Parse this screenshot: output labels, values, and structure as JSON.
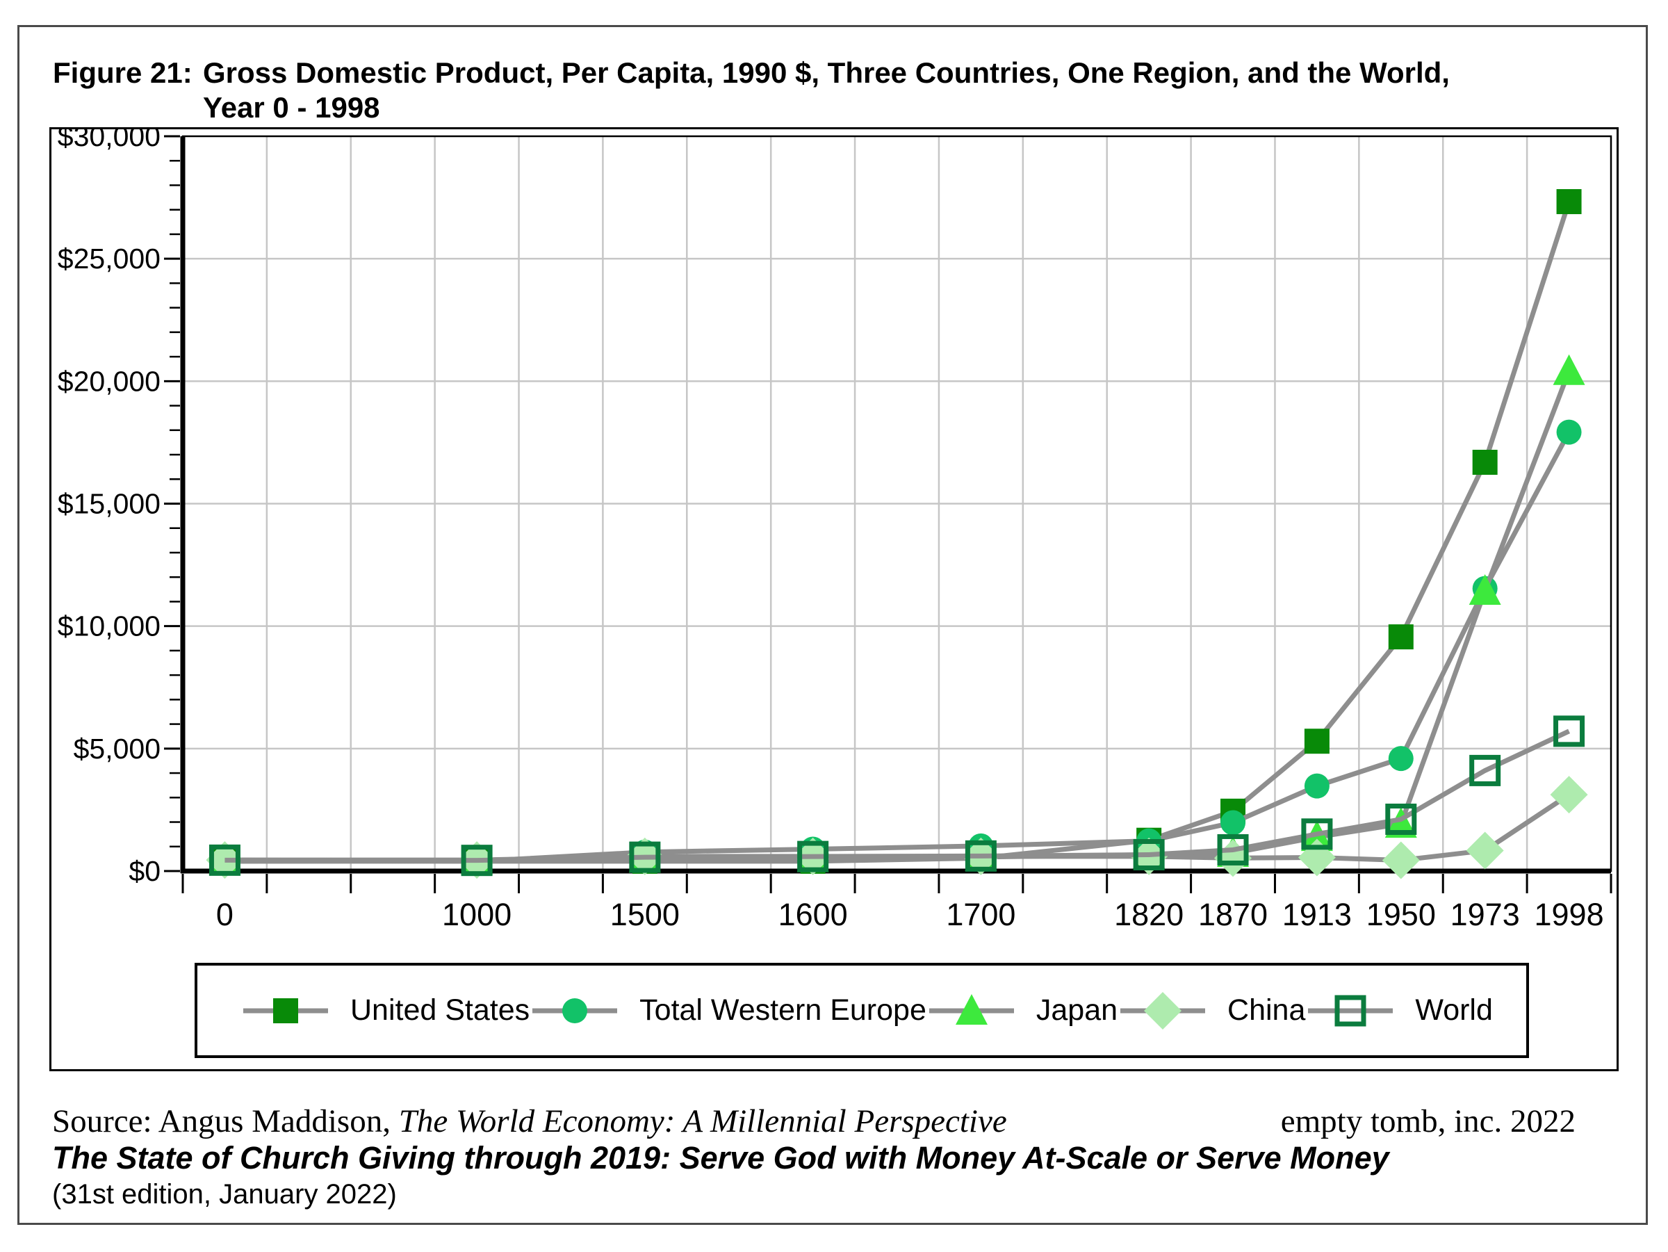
{
  "title": {
    "figure_label": "Figure 21:",
    "line1": "Gross Domestic Product, Per Capita, 1990 $, Three Countries, One Region, and the World,",
    "line2": "Year 0 - 1998"
  },
  "footer": {
    "source_prefix": "Source: Angus Maddison, ",
    "source_title": "The World Economy: A Millennial Perspective",
    "credit": "empty tomb, inc. 2022",
    "book_title": "The State of Church Giving through 2019: Serve God with Money At-Scale or Serve Money",
    "edition": "(31st edition, January 2022)"
  },
  "chart_data": {
    "type": "line",
    "title": "Figure 21: Gross Domestic Product, Per Capita, 1990 $, Three Countries, One Region, and the World, Year 0 - 1998",
    "xlabel": "",
    "ylabel": "",
    "categories": [
      "0",
      "1000",
      "1500",
      "1600",
      "1700",
      "1820",
      "1870",
      "1913",
      "1950",
      "1973",
      "1998"
    ],
    "category_slots": [
      0,
      3,
      5,
      7,
      9,
      11,
      12,
      13,
      14,
      15,
      16
    ],
    "num_slots": 17,
    "ylim": [
      0,
      30000
    ],
    "y_ticks": [
      0,
      5000,
      10000,
      15000,
      20000,
      25000,
      30000
    ],
    "y_tick_labels": [
      "$0",
      "$5,000",
      "$10,000",
      "$15,000",
      "$20,000",
      "$25,000",
      "$30,000"
    ],
    "y_minor_step": 1000,
    "grid": true,
    "legend_position": "bottom",
    "line_color": "#8E8E8E",
    "grid_color": "#C6C6C6",
    "series": [
      {
        "name": "United States",
        "marker": "filled-square",
        "color": "#088A08",
        "values": [
          400,
          400,
          400,
          400,
          527,
          1257,
          2445,
          5301,
          9561,
          16689,
          27331
        ]
      },
      {
        "name": "Total Western Europe",
        "marker": "filled-circle",
        "color": "#12C268",
        "values": [
          450,
          400,
          774,
          894,
          1024,
          1232,
          1974,
          3473,
          4594,
          11534,
          17921
        ]
      },
      {
        "name": "Japan",
        "marker": "filled-triangle",
        "color": "#3DE93D",
        "values": [
          400,
          425,
          500,
          520,
          570,
          669,
          737,
          1387,
          1926,
          11439,
          20413
        ]
      },
      {
        "name": "China",
        "marker": "filled-diamond",
        "color": "#AEEBAE",
        "values": [
          450,
          450,
          600,
          600,
          600,
          600,
          530,
          552,
          439,
          839,
          3117
        ]
      },
      {
        "name": "World",
        "marker": "open-square",
        "color": "#0B7C3E",
        "values": [
          444,
          435,
          565,
          593,
          615,
          667,
          867,
          1510,
          2114,
          4104,
          5709
        ]
      }
    ]
  }
}
